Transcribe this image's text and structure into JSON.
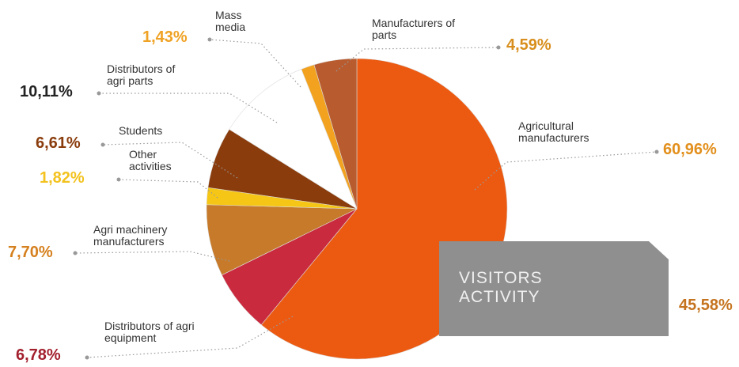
{
  "chart_data": {
    "type": "pie",
    "title": "VISITORS ACTIVITY",
    "categories": [
      "Agricultural manufacturers",
      "Distributors of agri equipment",
      "Agri machinery manufacturers",
      "Other activities",
      "Students",
      "Distributors of agri parts",
      "Mass media",
      "Manufacturers of parts"
    ],
    "values": [
      60.96,
      6.78,
      7.7,
      1.82,
      6.61,
      10.11,
      1.43,
      4.59
    ],
    "value_labels": [
      "60,96%",
      "6,78%",
      "7,70%",
      "1,82%",
      "6,61%",
      "10,11%",
      "1,43%",
      "4,59%"
    ],
    "colors": [
      "#ec5a12",
      "#c92a3e",
      "#c67a2a",
      "#f6c616",
      "#8a3c0c",
      "#ffffff",
      "#f2a21e",
      "#b85c30"
    ],
    "label_colors": [
      "#e28f1c",
      "#a3202e",
      "#d5801e",
      "#f3c21e",
      "#8a3c0c",
      "#222222",
      "#efa224",
      "#d88e1c"
    ],
    "annotation": "45,58%"
  }
}
